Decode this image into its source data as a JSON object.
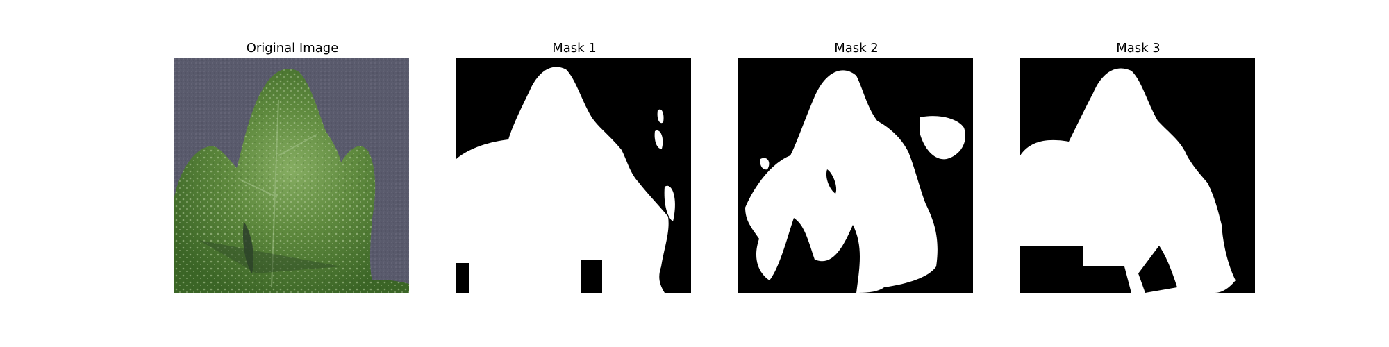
{
  "panels": [
    {
      "title": "Original Image"
    },
    {
      "title": "Mask 1"
    },
    {
      "title": "Mask 2"
    },
    {
      "title": "Mask 3"
    }
  ],
  "colors": {
    "mask_background": "#000000",
    "mask_foreground": "#ffffff",
    "photo_background": "#5a5b6b",
    "leaf_dark": "#3f6a2a",
    "leaf_light": "#7da45a"
  }
}
